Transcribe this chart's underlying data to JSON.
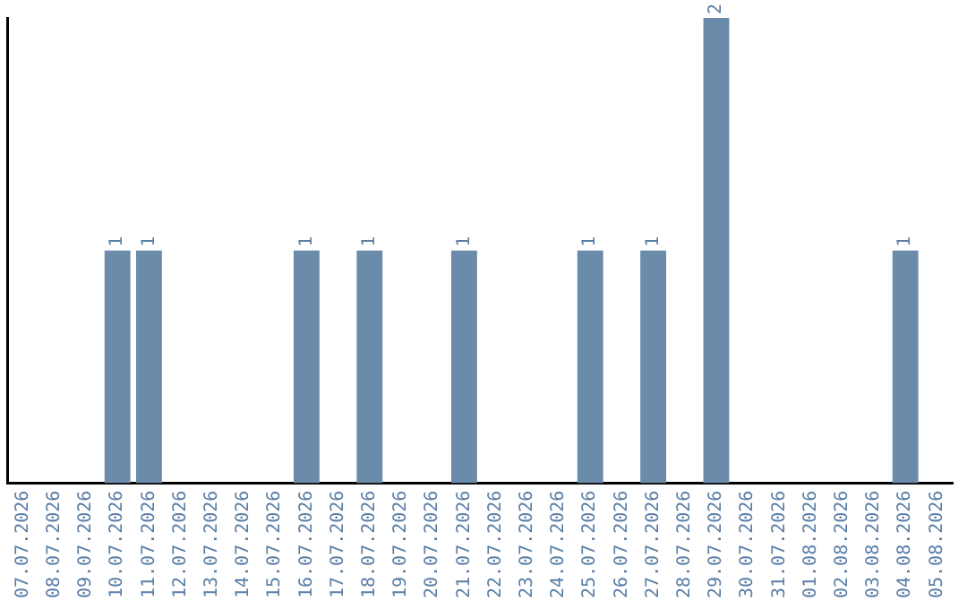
{
  "chart_data": {
    "type": "bar",
    "categories": [
      "07.07.2026",
      "08.07.2026",
      "09.07.2026",
      "10.07.2026",
      "11.07.2026",
      "12.07.2026",
      "13.07.2026",
      "14.07.2026",
      "15.07.2026",
      "16.07.2026",
      "17.07.2026",
      "18.07.2026",
      "19.07.2026",
      "20.07.2026",
      "21.07.2026",
      "22.07.2026",
      "23.07.2026",
      "24.07.2026",
      "25.07.2026",
      "26.07.2026",
      "27.07.2026",
      "28.07.2026",
      "29.07.2026",
      "30.07.2026",
      "31.07.2026",
      "01.08.2026",
      "02.08.2026",
      "03.08.2026",
      "04.08.2026",
      "05.08.2026"
    ],
    "values": [
      0,
      0,
      0,
      1,
      1,
      0,
      0,
      0,
      0,
      1,
      0,
      1,
      0,
      0,
      1,
      0,
      0,
      0,
      1,
      0,
      1,
      0,
      2,
      0,
      0,
      0,
      0,
      0,
      1,
      0
    ],
    "value_labels": [
      null,
      null,
      null,
      "1",
      "1",
      null,
      null,
      null,
      null,
      "1",
      null,
      "1",
      null,
      null,
      "1",
      null,
      null,
      null,
      "1",
      null,
      "1",
      null,
      "2",
      null,
      null,
      null,
      null,
      null,
      "1",
      null
    ],
    "color": "#6a8caa",
    "ylim": [
      0,
      2
    ],
    "tick_labels": "x",
    "grid": false,
    "legend": false
  }
}
